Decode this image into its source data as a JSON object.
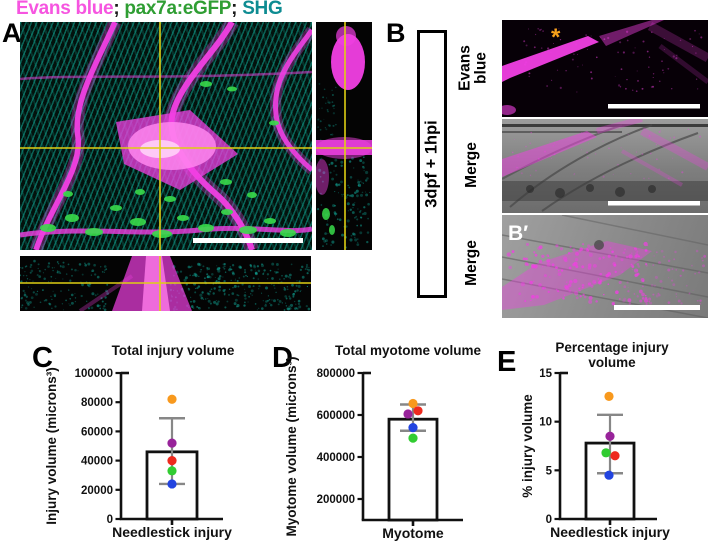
{
  "figure_legend": {
    "parts": [
      {
        "text": "Evans blue",
        "color": "#F655E0"
      },
      {
        "text": "; ",
        "color": "#1A1A1A"
      },
      {
        "text": "pax7a:eGFP",
        "color": "#2F9E33"
      },
      {
        "text": "; ",
        "color": "#1A1A1A"
      },
      {
        "text": "SHG",
        "color": "#0E8C92"
      }
    ]
  },
  "panel_a": {
    "label": "A"
  },
  "panel_b": {
    "label": "B",
    "timepoint_box": "3dpf + 1hpi",
    "row_labels": [
      "Evans blue",
      "Merge",
      "Merge"
    ],
    "inset_label": "B′",
    "asterisk": "*"
  },
  "style_colors": {
    "evans_magenta": "#F13FE3",
    "gfp_green": "#38DC4A",
    "shg_cyan": "#12B3A2",
    "crosshair_yellow": "#DECE14",
    "errorbar_gray": "#878787",
    "asterisk_orange": "#F7A11A"
  },
  "chart_data": [
    {
      "panel": "C",
      "type": "bar",
      "title": "Total injury volume",
      "xlabel": "Needlestick injury",
      "ylabel": "Injury volume (microns³)",
      "ylim": [
        0,
        100000
      ],
      "yticks": [
        0,
        20000,
        40000,
        60000,
        80000,
        100000
      ],
      "bar": {
        "category": "Needlestick injury",
        "mean": 46000,
        "error_low": 24000,
        "error_high": 69000
      },
      "points": [
        {
          "color": "#F8991D",
          "value": 82000,
          "dx": 0
        },
        {
          "color": "#98239A",
          "value": 52000,
          "dx": 0
        },
        {
          "color": "#EE2A1E",
          "value": 40000,
          "dx": 0
        },
        {
          "color": "#31CC31",
          "value": 33000,
          "dx": 0
        },
        {
          "color": "#2244E0",
          "value": 24000,
          "dx": 0
        }
      ]
    },
    {
      "panel": "D",
      "type": "bar",
      "title": "Total myotome volume",
      "xlabel": "Myotome",
      "ylabel": "Myotome volume (microns³)",
      "ylim": [
        100000,
        800000
      ],
      "yticks": [
        200000,
        400000,
        600000,
        800000
      ],
      "bar": {
        "category": "Myotome",
        "mean": 580000,
        "error_low": 525000,
        "error_high": 650000
      },
      "points": [
        {
          "color": "#F8991D",
          "value": 655000,
          "dx": 0
        },
        {
          "color": "#EE2A1E",
          "value": 620000,
          "dx": 5
        },
        {
          "color": "#98239A",
          "value": 605000,
          "dx": -5
        },
        {
          "color": "#2244E0",
          "value": 540000,
          "dx": 0
        },
        {
          "color": "#31CC31",
          "value": 490000,
          "dx": 0
        }
      ]
    },
    {
      "panel": "E",
      "type": "bar",
      "title": [
        "Percentage injury",
        "volume"
      ],
      "xlabel": "Needlestick injury",
      "ylabel": "% injury volume",
      "ylim": [
        0,
        15
      ],
      "yticks": [
        0,
        5,
        10,
        15
      ],
      "bar": {
        "category": "Needlestick injury",
        "mean": 7.8,
        "error_low": 4.7,
        "error_high": 10.7
      },
      "points": [
        {
          "color": "#F8991D",
          "value": 12.6,
          "dx": -1
        },
        {
          "color": "#98239A",
          "value": 8.5,
          "dx": 0
        },
        {
          "color": "#31CC31",
          "value": 6.8,
          "dx": -4
        },
        {
          "color": "#EE2A1E",
          "value": 6.5,
          "dx": 5
        },
        {
          "color": "#2244E0",
          "value": 4.5,
          "dx": -1
        }
      ]
    }
  ]
}
